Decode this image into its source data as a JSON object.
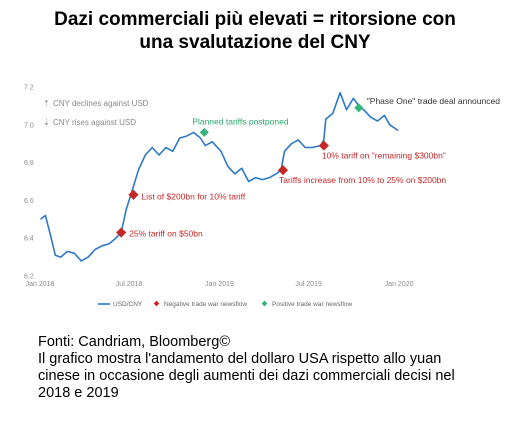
{
  "title_lines": [
    "Dazi commerciali più elevati = ritorsione con",
    "una svalutazione del CNY"
  ],
  "caption": {
    "source": "Fonti: Candriam, Bloomberg©",
    "lines": [
      "Il grafico mostra l'andamento del dollaro USA rispetto allo yuan",
      "cinese in occasione degli aumenti dei dazi commerciali decisi nel",
      "2018 e 2019"
    ]
  },
  "colors": {
    "line": "#2e78c8",
    "negative": "#c62828",
    "positive": "#34b37a"
  },
  "chart_data": {
    "type": "line",
    "ylim": [
      6.2,
      7.2
    ],
    "xlim": [
      "2018-01-01",
      "2020-01-15"
    ],
    "y_ticks": [
      "7.2",
      "7.0",
      "6.8",
      "6.6",
      "6.4",
      "6.2"
    ],
    "x_ticks": [
      {
        "label": "Jan 2018",
        "date": "2018-01-01"
      },
      {
        "label": "Jul 2018",
        "date": "2018-07-01"
      },
      {
        "label": "Jan 2019",
        "date": "2019-01-01"
      },
      {
        "label": "Jul 2019",
        "date": "2019-07-01"
      },
      {
        "label": "Jan 2020",
        "date": "2020-01-01"
      }
    ],
    "axis_notes": [
      "CNY declines against USD",
      "CNY rises against USD"
    ],
    "series": [
      {
        "name": "USD/CNY",
        "points": [
          [
            "2018-01-02",
            6.5
          ],
          [
            "2018-01-12",
            6.52
          ],
          [
            "2018-01-22",
            6.42
          ],
          [
            "2018-02-01",
            6.31
          ],
          [
            "2018-02-12",
            6.3
          ],
          [
            "2018-02-26",
            6.33
          ],
          [
            "2018-03-12",
            6.32
          ],
          [
            "2018-03-26",
            6.28
          ],
          [
            "2018-04-09",
            6.3
          ],
          [
            "2018-04-23",
            6.34
          ],
          [
            "2018-05-07",
            6.36
          ],
          [
            "2018-05-21",
            6.37
          ],
          [
            "2018-06-04",
            6.4
          ],
          [
            "2018-06-15",
            6.43
          ],
          [
            "2018-06-25",
            6.55
          ],
          [
            "2018-07-06",
            6.64
          ],
          [
            "2018-07-20",
            6.76
          ],
          [
            "2018-08-03",
            6.84
          ],
          [
            "2018-08-17",
            6.88
          ],
          [
            "2018-08-31",
            6.84
          ],
          [
            "2018-09-14",
            6.88
          ],
          [
            "2018-09-28",
            6.86
          ],
          [
            "2018-10-12",
            6.93
          ],
          [
            "2018-10-26",
            6.94
          ],
          [
            "2018-11-09",
            6.96
          ],
          [
            "2018-11-23",
            6.93
          ],
          [
            "2018-12-03",
            6.89
          ],
          [
            "2018-12-17",
            6.91
          ],
          [
            "2019-01-04",
            6.86
          ],
          [
            "2019-01-18",
            6.78
          ],
          [
            "2019-02-01",
            6.74
          ],
          [
            "2019-02-15",
            6.77
          ],
          [
            "2019-03-01",
            6.7
          ],
          [
            "2019-03-15",
            6.72
          ],
          [
            "2019-03-29",
            6.71
          ],
          [
            "2019-04-12",
            6.72
          ],
          [
            "2019-04-26",
            6.74
          ],
          [
            "2019-05-06",
            6.76
          ],
          [
            "2019-05-13",
            6.86
          ],
          [
            "2019-05-27",
            6.9
          ],
          [
            "2019-06-10",
            6.92
          ],
          [
            "2019-06-24",
            6.88
          ],
          [
            "2019-07-08",
            6.88
          ],
          [
            "2019-07-26",
            6.89
          ],
          [
            "2019-08-01",
            6.92
          ],
          [
            "2019-08-05",
            7.03
          ],
          [
            "2019-08-19",
            7.06
          ],
          [
            "2019-09-03",
            7.17
          ],
          [
            "2019-09-16",
            7.08
          ],
          [
            "2019-09-30",
            7.14
          ],
          [
            "2019-10-11",
            7.1
          ],
          [
            "2019-10-21",
            7.08
          ],
          [
            "2019-11-04",
            7.04
          ],
          [
            "2019-11-18",
            7.02
          ],
          [
            "2019-12-02",
            7.05
          ],
          [
            "2019-12-13",
            7.0
          ],
          [
            "2019-12-30",
            6.97
          ]
        ]
      }
    ],
    "events": [
      {
        "date": "2018-06-15",
        "value": 6.43,
        "kind": "negative",
        "label": "25% tariff on $50bn"
      },
      {
        "date": "2018-07-10",
        "value": 6.63,
        "kind": "negative",
        "label": "List of $200bn for 10% tariff"
      },
      {
        "date": "2018-12-01",
        "value": 6.96,
        "kind": "positive",
        "label": "Planned tariffs postponed"
      },
      {
        "date": "2019-05-10",
        "value": 6.76,
        "kind": "negative",
        "label": "Tariffs increase from 10% to 25% on $200bn"
      },
      {
        "date": "2019-08-01",
        "value": 6.89,
        "kind": "negative",
        "label": "10% tariff on \"remaining $300bn\""
      },
      {
        "date": "2019-10-11",
        "value": 7.09,
        "kind": "positive",
        "label": "\"Phase One\" trade deal announced"
      }
    ],
    "legend": {
      "position": "bottom-center",
      "entries": [
        "USD/CNY",
        "Negative trade war newsflow",
        "Positive trade war newsflow"
      ]
    }
  }
}
